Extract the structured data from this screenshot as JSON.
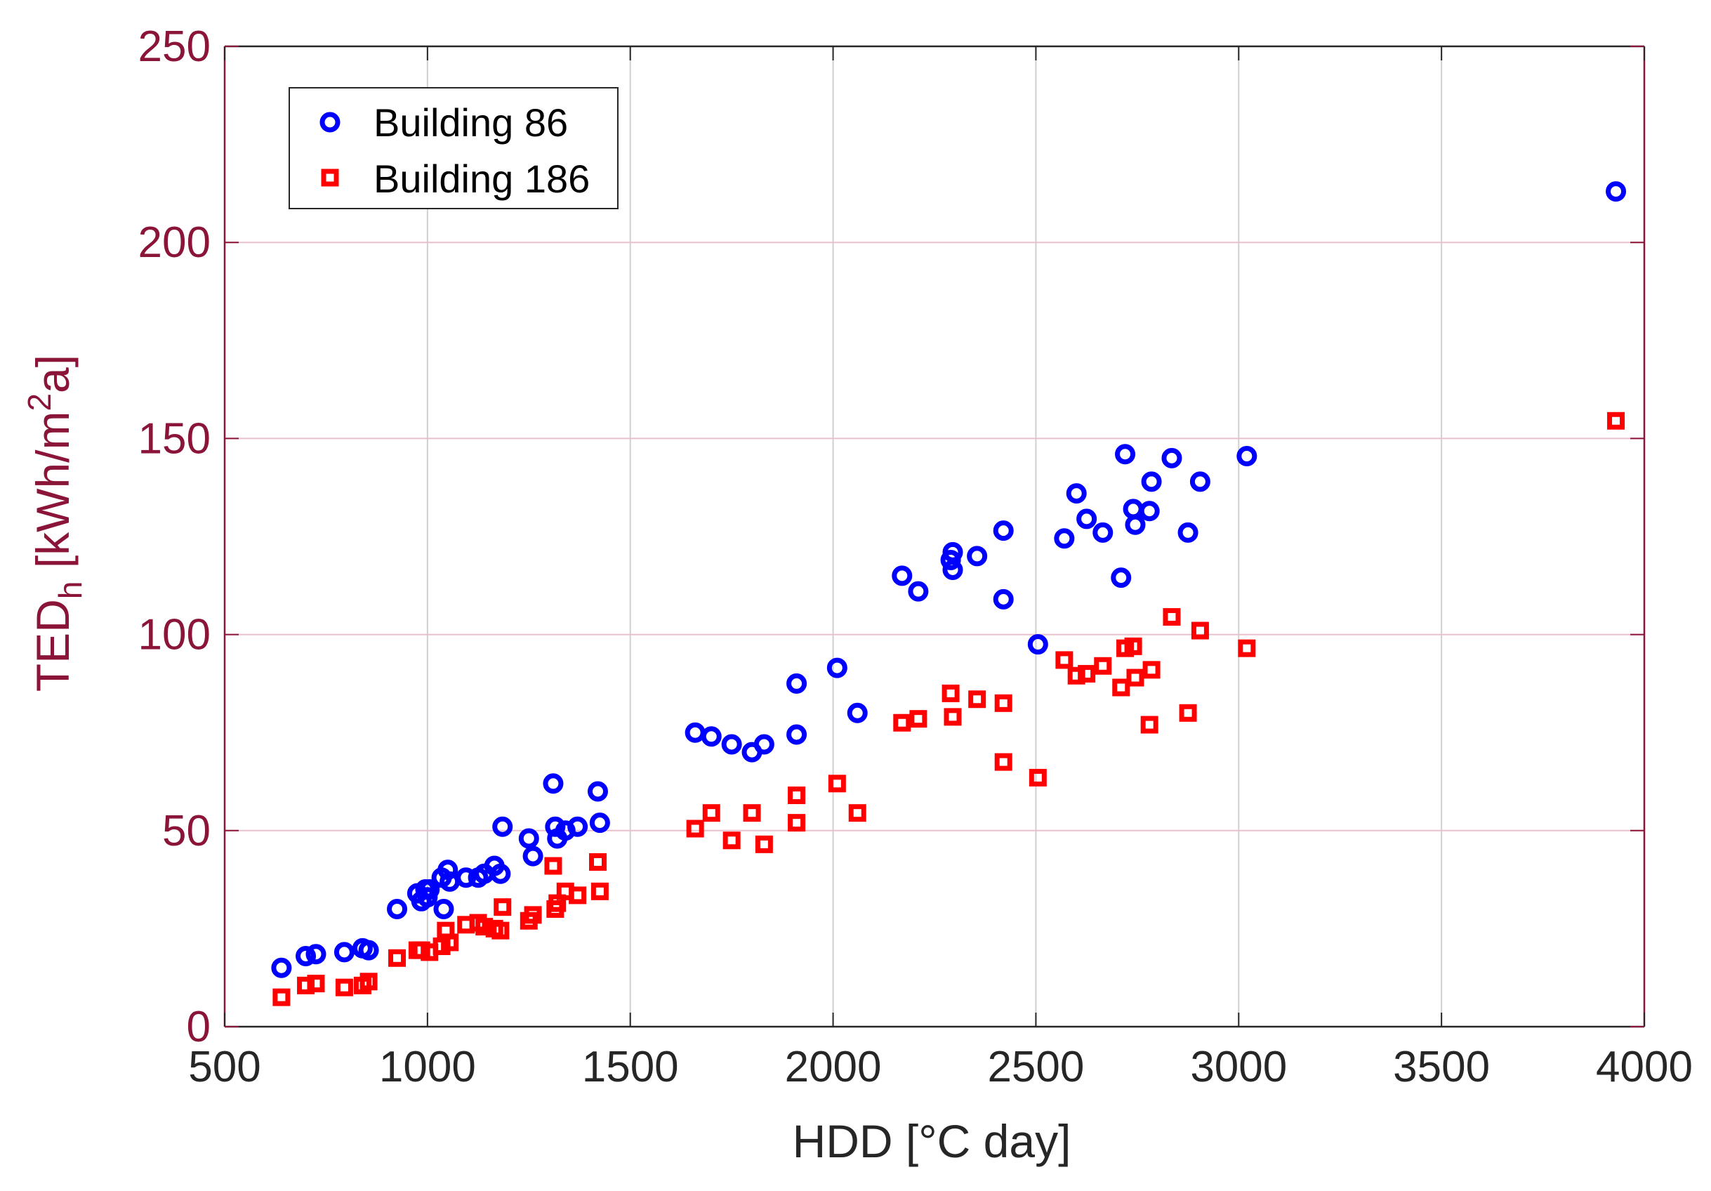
{
  "chart_data": {
    "type": "scatter",
    "title": "",
    "xlabel": "HDD [°C day]",
    "ylabel": {
      "main": "TED",
      "sub": "h",
      "unit_prefix": " [kWh/m",
      "sup": "2",
      "unit_suffix": "a]"
    },
    "xlim": [
      500,
      4000
    ],
    "ylim": [
      0,
      250
    ],
    "xticks": [
      500,
      1000,
      1500,
      2000,
      2500,
      3000,
      3500,
      4000
    ],
    "yticks": [
      0,
      50,
      100,
      150,
      200,
      250
    ],
    "grid": true,
    "legend_position": "top-left",
    "colors": {
      "axis_x": "#262626",
      "axis_y": "#8a1538",
      "grid_x": "#d0d0d0",
      "grid_y": "#e8c0cb",
      "building86": "#0000ff",
      "building186": "#ff0000"
    },
    "series": [
      {
        "name": "Building 86",
        "marker": "circle",
        "color": "#0000ff",
        "points": [
          [
            640,
            15
          ],
          [
            700,
            18
          ],
          [
            725,
            18.5
          ],
          [
            795,
            19
          ],
          [
            840,
            20
          ],
          [
            855,
            19.5
          ],
          [
            925,
            30
          ],
          [
            975,
            34
          ],
          [
            985,
            32
          ],
          [
            995,
            35
          ],
          [
            1000,
            33
          ],
          [
            1005,
            35
          ],
          [
            1035,
            38
          ],
          [
            1040,
            30
          ],
          [
            1050,
            40
          ],
          [
            1055,
            37
          ],
          [
            1095,
            38
          ],
          [
            1125,
            38
          ],
          [
            1140,
            39
          ],
          [
            1165,
            41
          ],
          [
            1180,
            39
          ],
          [
            1185,
            51
          ],
          [
            1250,
            48
          ],
          [
            1260,
            43.5
          ],
          [
            1310,
            62
          ],
          [
            1315,
            51
          ],
          [
            1320,
            48
          ],
          [
            1340,
            50
          ],
          [
            1370,
            51
          ],
          [
            1420,
            60
          ],
          [
            1425,
            52
          ],
          [
            1660,
            75
          ],
          [
            1700,
            74
          ],
          [
            1750,
            72
          ],
          [
            1800,
            70
          ],
          [
            1830,
            72
          ],
          [
            1910,
            87.5
          ],
          [
            1910,
            74.5
          ],
          [
            2010,
            91.5
          ],
          [
            2060,
            80
          ],
          [
            2170,
            115
          ],
          [
            2210,
            111
          ],
          [
            2290,
            119
          ],
          [
            2295,
            121
          ],
          [
            2295,
            116.5
          ],
          [
            2355,
            120
          ],
          [
            2420,
            126.5
          ],
          [
            2420,
            109
          ],
          [
            2505,
            97.5
          ],
          [
            2570,
            124.5
          ],
          [
            2600,
            136
          ],
          [
            2625,
            129.5
          ],
          [
            2665,
            126
          ],
          [
            2710,
            114.5
          ],
          [
            2720,
            146
          ],
          [
            2740,
            132
          ],
          [
            2745,
            128
          ],
          [
            2780,
            131.5
          ],
          [
            2785,
            139
          ],
          [
            2835,
            145
          ],
          [
            2875,
            126
          ],
          [
            2905,
            139
          ],
          [
            3020,
            145.5
          ],
          [
            3930,
            213
          ]
        ]
      },
      {
        "name": "Building 186",
        "marker": "square",
        "color": "#ff0000",
        "points": [
          [
            640,
            7.5
          ],
          [
            700,
            10.5
          ],
          [
            725,
            11
          ],
          [
            795,
            10
          ],
          [
            840,
            10.5
          ],
          [
            855,
            11.5
          ],
          [
            925,
            17.5
          ],
          [
            975,
            19.5
          ],
          [
            985,
            19.5
          ],
          [
            1005,
            19
          ],
          [
            1035,
            20.5
          ],
          [
            1045,
            24.5
          ],
          [
            1055,
            21.5
          ],
          [
            1095,
            26
          ],
          [
            1125,
            26.5
          ],
          [
            1140,
            25.5
          ],
          [
            1165,
            25
          ],
          [
            1180,
            24.5
          ],
          [
            1185,
            30.5
          ],
          [
            1250,
            27
          ],
          [
            1260,
            28.5
          ],
          [
            1310,
            41
          ],
          [
            1315,
            30
          ],
          [
            1320,
            31.5
          ],
          [
            1340,
            34.5
          ],
          [
            1370,
            33.5
          ],
          [
            1420,
            42
          ],
          [
            1425,
            34.5
          ],
          [
            1660,
            50.5
          ],
          [
            1700,
            54.5
          ],
          [
            1750,
            47.5
          ],
          [
            1800,
            54.5
          ],
          [
            1830,
            46.5
          ],
          [
            1910,
            59
          ],
          [
            1910,
            52
          ],
          [
            2010,
            62
          ],
          [
            2060,
            54.5
          ],
          [
            2170,
            77.5
          ],
          [
            2210,
            78.5
          ],
          [
            2290,
            85
          ],
          [
            2295,
            79
          ],
          [
            2355,
            83.5
          ],
          [
            2420,
            82.5
          ],
          [
            2420,
            67.5
          ],
          [
            2505,
            63.5
          ],
          [
            2570,
            93.5
          ],
          [
            2600,
            89.5
          ],
          [
            2625,
            90
          ],
          [
            2665,
            92
          ],
          [
            2710,
            86.5
          ],
          [
            2720,
            96.5
          ],
          [
            2740,
            97
          ],
          [
            2745,
            89
          ],
          [
            2780,
            77
          ],
          [
            2785,
            91
          ],
          [
            2835,
            104.5
          ],
          [
            2875,
            80
          ],
          [
            2905,
            101
          ],
          [
            3020,
            96.5
          ],
          [
            3930,
            154.5
          ]
        ]
      }
    ]
  }
}
